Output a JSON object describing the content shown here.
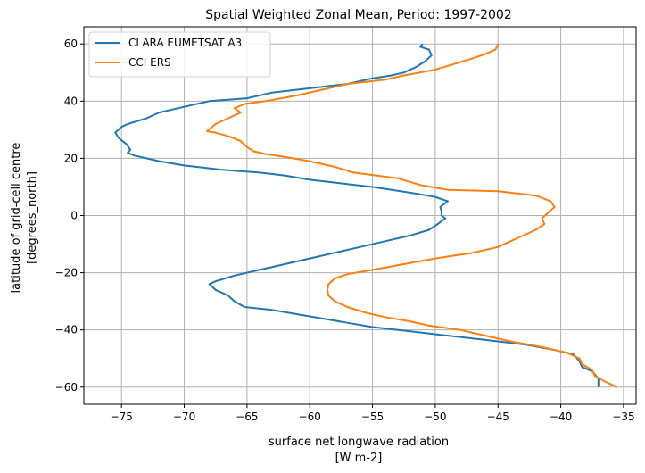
{
  "chart_data": {
    "type": "line",
    "title": "Spatial Weighted Zonal Mean, Period: 1997-2002",
    "xlabel": [
      "surface net longwave radiation",
      "[W m-2]"
    ],
    "ylabel": [
      "latitude of grid-cell centre",
      "[degrees_north]"
    ],
    "xlim": [
      -78,
      -34
    ],
    "ylim": [
      -66,
      66
    ],
    "xticks": [
      -75,
      -70,
      -65,
      -60,
      -55,
      -50,
      -45,
      -40,
      -35
    ],
    "yticks": [
      -60,
      -40,
      -20,
      0,
      20,
      40,
      60
    ],
    "grid": true,
    "legend_position": "top-left",
    "series": [
      {
        "name": "CLARA EUMETSAT A3",
        "color": "#1f77b4",
        "points": [
          [
            -51,
            60
          ],
          [
            -51.2,
            59
          ],
          [
            -50.5,
            58
          ],
          [
            -50.3,
            56
          ],
          [
            -50.8,
            54
          ],
          [
            -51.5,
            52
          ],
          [
            -52.5,
            50
          ],
          [
            -53.5,
            49
          ],
          [
            -55,
            48
          ],
          [
            -57,
            46
          ],
          [
            -59,
            45
          ],
          [
            -61,
            44
          ],
          [
            -63,
            43
          ],
          [
            -65,
            41
          ],
          [
            -68,
            40
          ],
          [
            -70,
            38
          ],
          [
            -72,
            36
          ],
          [
            -73,
            34
          ],
          [
            -74.5,
            32
          ],
          [
            -75,
            31
          ],
          [
            -75.5,
            29
          ],
          [
            -75.2,
            27
          ],
          [
            -74.6,
            25
          ],
          [
            -74.3,
            23
          ],
          [
            -74.5,
            22
          ],
          [
            -74,
            21
          ],
          [
            -72,
            19
          ],
          [
            -70,
            17.5
          ],
          [
            -67,
            16
          ],
          [
            -64,
            15
          ],
          [
            -62,
            14
          ],
          [
            -60,
            12.5
          ],
          [
            -57,
            11
          ],
          [
            -55,
            10
          ],
          [
            -52,
            8
          ],
          [
            -50,
            6.5
          ],
          [
            -49,
            5
          ],
          [
            -49.6,
            3
          ],
          [
            -49.5,
            1.5
          ],
          [
            -49.5,
            0
          ],
          [
            -49.2,
            -1
          ],
          [
            -49.8,
            -3
          ],
          [
            -50.5,
            -5
          ],
          [
            -52,
            -7
          ],
          [
            -54,
            -9
          ],
          [
            -56,
            -11
          ],
          [
            -58,
            -13
          ],
          [
            -60,
            -15
          ],
          [
            -62,
            -17
          ],
          [
            -64,
            -19
          ],
          [
            -66,
            -21
          ],
          [
            -67.5,
            -23
          ],
          [
            -68,
            -24
          ],
          [
            -67.5,
            -26
          ],
          [
            -66.5,
            -28
          ],
          [
            -66,
            -30
          ],
          [
            -65.2,
            -32
          ],
          [
            -63,
            -33
          ],
          [
            -61,
            -34.5
          ],
          [
            -59,
            -36
          ],
          [
            -57,
            -37.5
          ],
          [
            -55,
            -39
          ],
          [
            -52,
            -40.5
          ],
          [
            -49,
            -42
          ],
          [
            -46,
            -43.5
          ],
          [
            -43,
            -45
          ],
          [
            -40.5,
            -47
          ],
          [
            -39,
            -48.5
          ],
          [
            -38.5,
            -51
          ],
          [
            -38.3,
            -53
          ],
          [
            -37.5,
            -54.5
          ],
          [
            -37,
            -57
          ],
          [
            -37,
            -60
          ]
        ]
      },
      {
        "name": "CCI ERS",
        "color": "#ff7f0e",
        "points": [
          [
            -45,
            60
          ],
          [
            -45.2,
            58
          ],
          [
            -46,
            56.5
          ],
          [
            -47,
            55
          ],
          [
            -48.5,
            53
          ],
          [
            -50,
            51
          ],
          [
            -52.5,
            49
          ],
          [
            -54,
            47.5
          ],
          [
            -57,
            46
          ],
          [
            -59,
            44
          ],
          [
            -61,
            42
          ],
          [
            -63.5,
            40
          ],
          [
            -65.2,
            39
          ],
          [
            -66,
            37.5
          ],
          [
            -65.5,
            36
          ],
          [
            -66.5,
            34
          ],
          [
            -67.5,
            32
          ],
          [
            -68.2,
            29.5
          ],
          [
            -67.5,
            29
          ],
          [
            -66.3,
            27.5
          ],
          [
            -65.5,
            26
          ],
          [
            -65,
            24
          ],
          [
            -64.5,
            22.5
          ],
          [
            -63.5,
            21.5
          ],
          [
            -62,
            20.5
          ],
          [
            -60,
            19
          ],
          [
            -58,
            17
          ],
          [
            -56.5,
            15
          ],
          [
            -53,
            13
          ],
          [
            -51,
            10.5
          ],
          [
            -49,
            9
          ],
          [
            -45,
            8.5
          ],
          [
            -42,
            7
          ],
          [
            -40.8,
            5
          ],
          [
            -40.5,
            3
          ],
          [
            -41,
            1
          ],
          [
            -41.5,
            -1
          ],
          [
            -41.3,
            -3
          ],
          [
            -42,
            -5
          ],
          [
            -43,
            -7
          ],
          [
            -44,
            -9
          ],
          [
            -45,
            -11
          ],
          [
            -47,
            -13
          ],
          [
            -50,
            -15
          ],
          [
            -52.5,
            -17
          ],
          [
            -55,
            -19
          ],
          [
            -57,
            -20.5
          ],
          [
            -58,
            -22
          ],
          [
            -58.5,
            -24
          ],
          [
            -58.6,
            -26
          ],
          [
            -58.5,
            -28
          ],
          [
            -58,
            -30
          ],
          [
            -57,
            -32
          ],
          [
            -55.5,
            -34
          ],
          [
            -54,
            -35.5
          ],
          [
            -52,
            -37
          ],
          [
            -50.5,
            -38.5
          ],
          [
            -48,
            -40
          ],
          [
            -46,
            -42
          ],
          [
            -44,
            -44
          ],
          [
            -41.5,
            -46
          ],
          [
            -39.5,
            -48
          ],
          [
            -38.5,
            -50
          ],
          [
            -38.3,
            -52
          ],
          [
            -37.5,
            -54
          ],
          [
            -37.3,
            -56
          ],
          [
            -36.5,
            -58
          ],
          [
            -35.5,
            -60
          ]
        ]
      }
    ]
  }
}
